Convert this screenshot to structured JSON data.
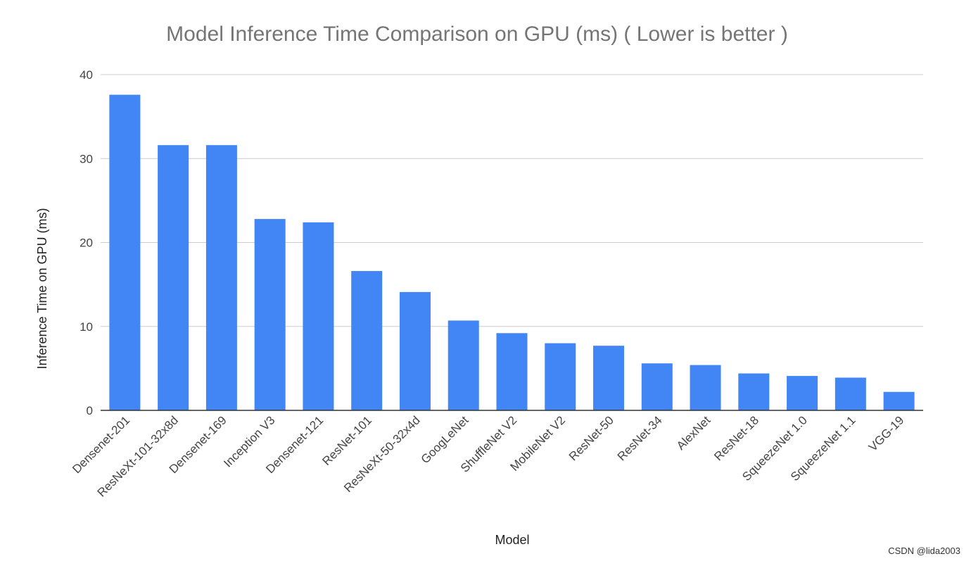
{
  "chart_data": {
    "type": "bar",
    "title": "Model Inference Time Comparison on GPU (ms) ( Lower is better )",
    "xlabel": "Model",
    "ylabel": "Inference Time on GPU (ms)",
    "ylim": [
      0,
      40
    ],
    "yticks": [
      0,
      10,
      20,
      30,
      40
    ],
    "grid": true,
    "bar_color": "#4285f4",
    "categories": [
      "Densenet-201",
      "ResNeXt-101-32x8d",
      "Densenet-169",
      "Inception V3",
      "Densenet-121",
      "ResNet-101",
      "ResNeXt-50-32x4d",
      "GoogLeNet",
      "ShuffleNet V2",
      "MobileNet V2",
      "ResNet-50",
      "ResNet-34",
      "AlexNet",
      "ResNet-18",
      "SqueezeNet 1.0",
      "SqueezeNet 1.1",
      "VGG-19"
    ],
    "values": [
      37.6,
      31.6,
      31.6,
      22.8,
      22.4,
      16.6,
      14.1,
      10.7,
      9.2,
      8.0,
      7.7,
      5.6,
      5.4,
      4.4,
      4.1,
      3.9,
      2.2
    ]
  },
  "watermark": "CSDN @lida2003"
}
